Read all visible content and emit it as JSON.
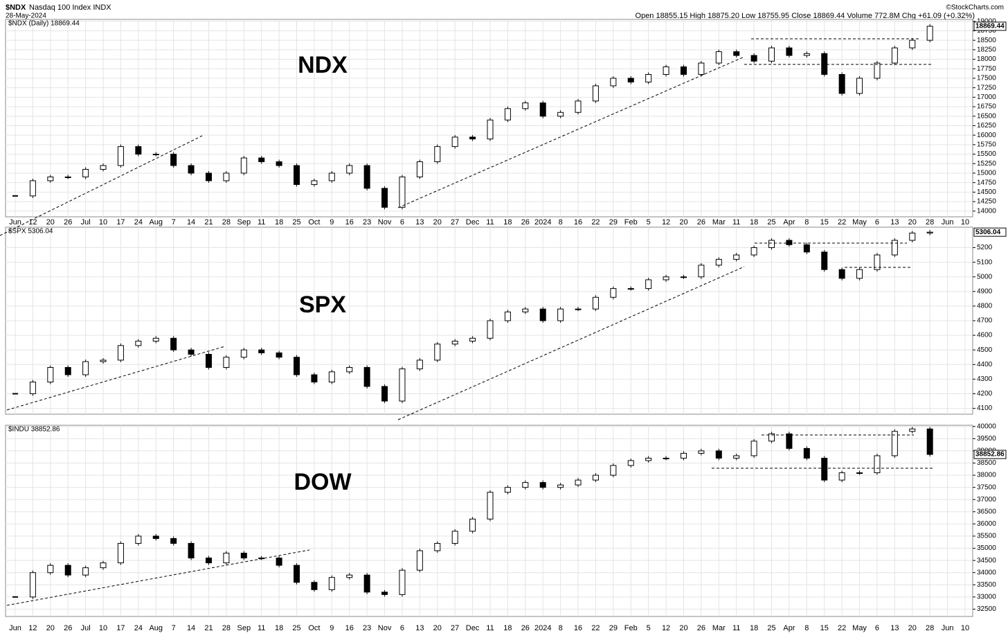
{
  "header": {
    "symbol": "$NDX",
    "name": "Nasdaq 100 Index INDX",
    "date": "28-May-2024",
    "quote": "Open 18855.15 High 18875.20 Low 18755.95 Close 18869.44 Volume 772.8M Chg +61.09 (+0.32%)",
    "source": "©StockCharts.com"
  },
  "chart_data": [
    {
      "type": "candlestick",
      "title": "NDX",
      "legend": "$NDX (Daily) 18869.44",
      "categories": [
        "Jun",
        "12",
        "20",
        "26",
        "Jul",
        "10",
        "17",
        "24",
        "Aug",
        "7",
        "14",
        "21",
        "28",
        "Sep",
        "11",
        "18",
        "25",
        "Oct",
        "9",
        "16",
        "23",
        "Nov",
        "6",
        "13",
        "20",
        "27",
        "Dec",
        "11",
        "18",
        "26",
        "2024",
        "8",
        "16",
        "22",
        "29",
        "Feb",
        "5",
        "12",
        "20",
        "26",
        "Mar",
        "11",
        "18",
        "25",
        "Apr",
        "8",
        "15",
        "22",
        "May",
        "6",
        "13",
        "20",
        "28",
        "Jun",
        "10"
      ],
      "values": [
        14400,
        14800,
        14900,
        14900,
        15100,
        15200,
        15700,
        15500,
        15500,
        15200,
        15000,
        14800,
        15000,
        15400,
        15300,
        15200,
        14700,
        14800,
        15000,
        15200,
        14600,
        14100,
        14900,
        15300,
        15700,
        15950,
        15900,
        16400,
        16700,
        16850,
        16500,
        16600,
        16900,
        17300,
        17500,
        17400,
        17600,
        17800,
        17600,
        17900,
        18200,
        18100,
        17950,
        18300,
        18100,
        18150,
        17600,
        17100,
        17500,
        17900,
        18300,
        18500,
        18869.44,
        null,
        null
      ],
      "ylim": [
        13850,
        19050
      ],
      "yticks": [
        14000,
        14250,
        14500,
        14750,
        15000,
        15250,
        15500,
        15750,
        16000,
        16250,
        16500,
        16750,
        17000,
        17250,
        17500,
        17750,
        18000,
        18250,
        18500,
        18750,
        19000
      ],
      "up_color": "#ffffff",
      "down_color": "#000000",
      "grid": true
    },
    {
      "type": "candlestick",
      "title": "SPX",
      "legend": "$SPX 5306.04",
      "categories": [
        "Jun",
        "12",
        "20",
        "26",
        "Jul",
        "10",
        "17",
        "24",
        "Aug",
        "7",
        "14",
        "21",
        "28",
        "Sep",
        "11",
        "18",
        "25",
        "Oct",
        "9",
        "16",
        "23",
        "Nov",
        "6",
        "13",
        "20",
        "27",
        "Dec",
        "11",
        "18",
        "26",
        "2024",
        "8",
        "16",
        "22",
        "29",
        "Feb",
        "5",
        "12",
        "20",
        "26",
        "Mar",
        "11",
        "18",
        "25",
        "Apr",
        "8",
        "15",
        "22",
        "May",
        "6",
        "13",
        "20",
        "28",
        "Jun",
        "10"
      ],
      "values": [
        4200,
        4280,
        4380,
        4330,
        4420,
        4430,
        4530,
        4560,
        4580,
        4500,
        4470,
        4380,
        4450,
        4500,
        4480,
        4450,
        4330,
        4280,
        4350,
        4380,
        4250,
        4150,
        4370,
        4430,
        4540,
        4560,
        4580,
        4700,
        4760,
        4780,
        4700,
        4780,
        4780,
        4860,
        4920,
        4920,
        4980,
        5000,
        5000,
        5080,
        5120,
        5150,
        5200,
        5250,
        5220,
        5170,
        5050,
        4990,
        5050,
        5150,
        5250,
        5300,
        5306.04,
        null,
        null
      ],
      "ylim": [
        4060,
        5340
      ],
      "yticks": [
        4100,
        4200,
        4300,
        4400,
        4500,
        4600,
        4700,
        4800,
        4900,
        5000,
        5100,
        5200
      ],
      "up_color": "#ffffff",
      "down_color": "#000000",
      "grid": true
    },
    {
      "type": "candlestick",
      "title": "DOW",
      "legend": "$INDU 38852.86",
      "categories": [
        "Jun",
        "12",
        "20",
        "26",
        "Jul",
        "10",
        "17",
        "24",
        "Aug",
        "7",
        "14",
        "21",
        "28",
        "Sep",
        "11",
        "18",
        "25",
        "Oct",
        "9",
        "16",
        "23",
        "Nov",
        "6",
        "13",
        "20",
        "27",
        "Dec",
        "11",
        "18",
        "26",
        "2024",
        "8",
        "16",
        "22",
        "29",
        "Feb",
        "5",
        "12",
        "20",
        "26",
        "Mar",
        "11",
        "18",
        "25",
        "Apr",
        "8",
        "15",
        "22",
        "May",
        "6",
        "13",
        "20",
        "28",
        "Jun",
        "10"
      ],
      "values": [
        33000,
        34000,
        34300,
        33900,
        34200,
        34400,
        35200,
        35500,
        35400,
        35200,
        34600,
        34400,
        34800,
        34600,
        34600,
        34300,
        33600,
        33300,
        33800,
        33900,
        33200,
        33100,
        34100,
        34900,
        35200,
        35700,
        36200,
        37300,
        37500,
        37700,
        37500,
        37600,
        37800,
        38000,
        38400,
        38600,
        38700,
        38700,
        38900,
        39000,
        38700,
        38800,
        39400,
        39700,
        39100,
        38700,
        37800,
        38100,
        38100,
        38800,
        39800,
        39900,
        38852.86,
        null,
        null
      ],
      "ylim": [
        32200,
        40050
      ],
      "yticks": [
        32500,
        33000,
        33500,
        34000,
        34500,
        35000,
        35500,
        36000,
        36500,
        37000,
        37500,
        38000,
        38500,
        39000,
        39500,
        40000
      ],
      "up_color": "#ffffff",
      "down_color": "#000000",
      "grid": true
    }
  ]
}
